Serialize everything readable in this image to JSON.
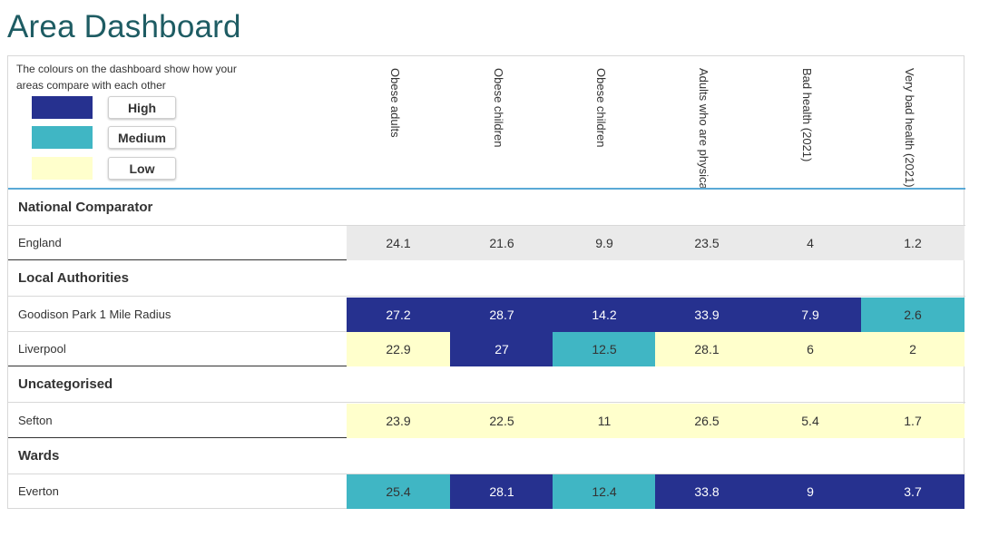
{
  "page": {
    "title": "Area Dashboard"
  },
  "legend": {
    "description": "The colours on the dashboard show how your areas compare with each other",
    "items": [
      {
        "label": "High",
        "color": "#26318f"
      },
      {
        "label": "Medium",
        "color": "#40b6c4"
      },
      {
        "label": "Low",
        "color": "#ffffcc"
      }
    ]
  },
  "columns": [
    "Obese adults",
    "Obese children",
    "Obese children",
    "Adults who are physically inactive",
    "Bad health (2021)",
    "Very bad health (2021)"
  ],
  "colors": {
    "high": "#26318f",
    "medium": "#40b6c4",
    "low": "#ffffcc",
    "national": "#eaeaea",
    "title": "#1e5c63",
    "header_rule": "#5aa9d6"
  },
  "sections": [
    {
      "title": "National Comparator",
      "rows": [
        {
          "name": "England",
          "values": [
            "24.1",
            "21.6",
            "9.9",
            "23.5",
            "4",
            "1.2"
          ],
          "bands": [
            "national",
            "national",
            "national",
            "national",
            "national",
            "national"
          ]
        }
      ]
    },
    {
      "title": "Local Authorities",
      "rows": [
        {
          "name": "Goodison Park 1 Mile Radius",
          "values": [
            "27.2",
            "28.7",
            "14.2",
            "33.9",
            "7.9",
            "2.6"
          ],
          "bands": [
            "high",
            "high",
            "high",
            "high",
            "high",
            "medium"
          ]
        },
        {
          "name": "Liverpool",
          "values": [
            "22.9",
            "27",
            "12.5",
            "28.1",
            "6",
            "2"
          ],
          "bands": [
            "low",
            "high",
            "medium",
            "low",
            "low",
            "low"
          ]
        }
      ]
    },
    {
      "title": "Uncategorised",
      "rows": [
        {
          "name": "Sefton",
          "values": [
            "23.9",
            "22.5",
            "11",
            "26.5",
            "5.4",
            "1.7"
          ],
          "bands": [
            "low",
            "low",
            "low",
            "low",
            "low",
            "low"
          ]
        }
      ]
    },
    {
      "title": "Wards",
      "rows": [
        {
          "name": "Everton",
          "values": [
            "25.4",
            "28.1",
            "12.4",
            "33.8",
            "9",
            "3.7"
          ],
          "bands": [
            "medium",
            "high",
            "medium",
            "high",
            "high",
            "high"
          ]
        }
      ]
    }
  ]
}
